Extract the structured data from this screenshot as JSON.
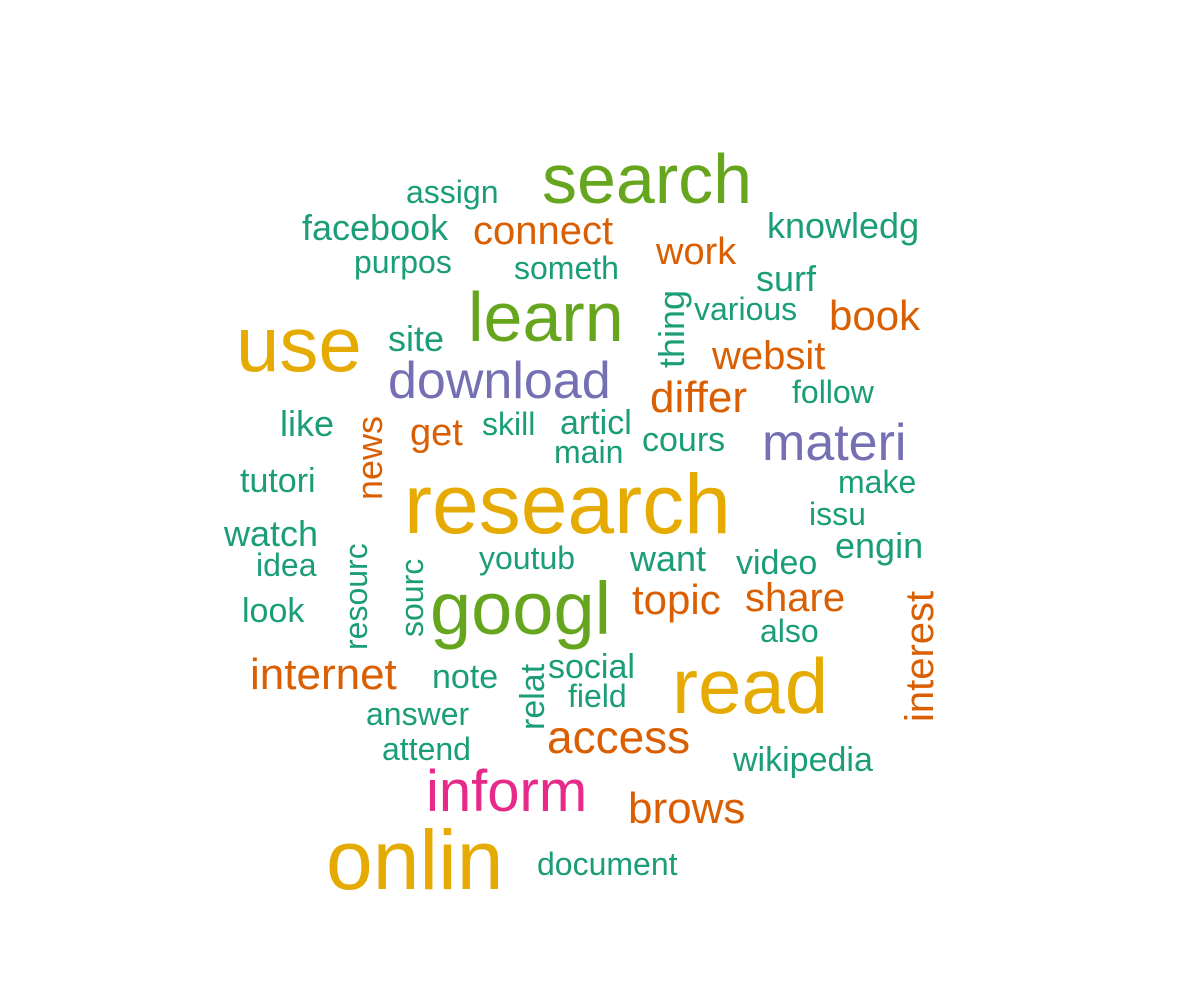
{
  "wordcloud": {
    "colors": {
      "teal": "#1b9e77",
      "orange": "#d95f02",
      "purple": "#7570b3",
      "pink": "#e7298a",
      "green": "#66a61e",
      "gold": "#e6ab02"
    },
    "words": [
      "research",
      "onlin",
      "read",
      "use",
      "googl",
      "search",
      "learn",
      "inform",
      "download",
      "materi",
      "access",
      "brows",
      "internet",
      "topic",
      "share",
      "differ",
      "websit",
      "book",
      "connect",
      "work",
      "get",
      "news",
      "interest",
      "surf",
      "engin",
      "want",
      "watch",
      "wikipedia",
      "document",
      "facebook",
      "knowledg",
      "assign",
      "purpos",
      "someth",
      "various",
      "site",
      "follow",
      "like",
      "skill",
      "articl",
      "main",
      "cours",
      "tutori",
      "make",
      "issu",
      "idea",
      "youtub",
      "video",
      "look",
      "also",
      "note",
      "social",
      "field",
      "answer",
      "attend",
      "thing",
      "resourc",
      "sourc",
      "relat"
    ]
  }
}
